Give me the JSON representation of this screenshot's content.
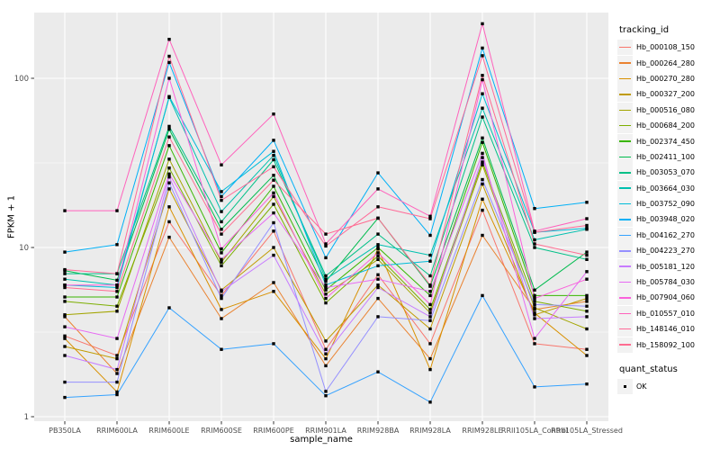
{
  "legend": {
    "tracking_title": "tracking_id",
    "quant_title": "quant_status",
    "quant_items": [
      {
        "label": "OK",
        "marker": "black-square"
      }
    ],
    "key_bg": "#F2F2F2"
  },
  "chart_data": {
    "type": "line",
    "title": "",
    "xlabel": "sample_name",
    "ylabel": "FPKM + 1",
    "x_type": "categorical",
    "y_scale": "log10",
    "y_ticks": [
      1,
      10,
      100
    ],
    "y_minor_ticks": [
      3.162,
      31.62
    ],
    "ylim": [
      1,
      230
    ],
    "grid": "on",
    "legend_position": "right",
    "panel_bg": "#EBEBEB",
    "grid_color": "#FFFFFF",
    "axis_text_color": "#4D4D4D",
    "tick_color": "#333333",
    "point_shape": "square",
    "point_color": "#000000",
    "categories": [
      "PB350LA",
      "RRIM600LA",
      "RRIM600LE",
      "RRIM600SE",
      "RRIM600PE",
      "RRIM901LA",
      "RRIM928BA",
      "RRIM928LA",
      "RRIM928LE",
      "RRII105LA_Control",
      "RRII105LA_Stressed"
    ],
    "series": [
      {
        "name": "Hb_000108_150",
        "color": "#F8766D",
        "values": [
          3.0,
          2.3,
          14.2,
          5.2,
          12.5,
          2.5,
          6.9,
          2.7,
          16.6,
          2.7,
          2.5
        ]
      },
      {
        "name": "Hb_000264_280",
        "color": "#EA8331",
        "values": [
          3.9,
          1.8,
          11.5,
          3.8,
          6.2,
          2.0,
          5.0,
          2.2,
          11.8,
          4.3,
          4.8
        ]
      },
      {
        "name": "Hb_000270_280",
        "color": "#D89000",
        "values": [
          2.9,
          1.4,
          17.4,
          4.3,
          5.5,
          2.2,
          9.8,
          1.9,
          19.3,
          4.1,
          2.3
        ]
      },
      {
        "name": "Hb_000327_200",
        "color": "#C09B00",
        "values": [
          2.6,
          2.2,
          22.2,
          5.6,
          10.0,
          2.8,
          6.0,
          3.3,
          23.7,
          4.0,
          5.0
        ]
      },
      {
        "name": "Hb_000516_080",
        "color": "#A3A500",
        "values": [
          4.0,
          4.2,
          33.3,
          8.2,
          20.0,
          5.3,
          8.5,
          4.1,
          30.8,
          4.4,
          3.3
        ]
      },
      {
        "name": "Hb_000684_200",
        "color": "#7CAE00",
        "values": [
          4.8,
          4.5,
          29.5,
          7.8,
          18.0,
          4.7,
          8.9,
          4.3,
          32.0,
          4.8,
          4.2
        ]
      },
      {
        "name": "Hb_002374_450",
        "color": "#39B600",
        "values": [
          5.1,
          5.1,
          40.0,
          9.3,
          23.0,
          5.6,
          10.0,
          5.2,
          41.8,
          5.2,
          5.2
        ]
      },
      {
        "name": "Hb_002411_100",
        "color": "#00BB4E",
        "values": [
          7.3,
          6.4,
          50.0,
          12.8,
          26.7,
          6.3,
          14.9,
          5.9,
          44.4,
          5.6,
          9.4
        ]
      },
      {
        "name": "Hb_003053_070",
        "color": "#00C087",
        "values": [
          7.0,
          7.0,
          52.0,
          14.2,
          33.0,
          6.8,
          12.0,
          6.8,
          59.0,
          10.0,
          8.5
        ]
      },
      {
        "name": "Hb_003664_030",
        "color": "#00C0AF",
        "values": [
          6.5,
          6.0,
          77.0,
          16.3,
          35.0,
          6.5,
          10.4,
          9.0,
          66.6,
          11.1,
          12.8
        ]
      },
      {
        "name": "Hb_003752_090",
        "color": "#00BCD8",
        "values": [
          6.0,
          5.8,
          78.0,
          21.4,
          37.0,
          6.0,
          7.8,
          8.3,
          81.0,
          12.3,
          13.0
        ]
      },
      {
        "name": "Hb_003948_020",
        "color": "#00B0F6",
        "values": [
          9.4,
          10.4,
          124.0,
          20.0,
          43.0,
          8.7,
          27.6,
          11.8,
          151.0,
          17.0,
          18.5
        ]
      },
      {
        "name": "Hb_004162_270",
        "color": "#35A2FF",
        "values": [
          1.3,
          1.35,
          4.4,
          2.5,
          2.7,
          1.33,
          1.84,
          1.22,
          5.2,
          1.5,
          1.56
        ]
      },
      {
        "name": "Hb_004223_270",
        "color": "#9590FF",
        "values": [
          1.6,
          1.6,
          24.1,
          5.0,
          14.0,
          1.41,
          3.9,
          3.7,
          25.2,
          4.6,
          4.5
        ]
      },
      {
        "name": "Hb_005181_120",
        "color": "#C77CFF",
        "values": [
          2.3,
          1.9,
          26.1,
          5.5,
          9.0,
          2.35,
          5.8,
          3.9,
          34.0,
          3.8,
          3.9
        ]
      },
      {
        "name": "Hb_005784_030",
        "color": "#E76BF3",
        "values": [
          3.4,
          2.9,
          27.2,
          8.5,
          16.0,
          5.8,
          6.5,
          5.5,
          36.0,
          2.9,
          7.2
        ]
      },
      {
        "name": "Hb_007904_060",
        "color": "#FA62DB",
        "values": [
          6.0,
          6.0,
          100.0,
          9.8,
          21.0,
          5.0,
          9.3,
          4.6,
          98.0,
          5.0,
          6.5
        ]
      },
      {
        "name": "Hb_010557_010",
        "color": "#FF62BC",
        "values": [
          16.5,
          16.5,
          170.0,
          30.8,
          61.5,
          10.5,
          22.2,
          15.3,
          210.0,
          12.5,
          14.8
        ]
      },
      {
        "name": "Hb_148146_010",
        "color": "#FF6A98",
        "values": [
          7.4,
          7.0,
          135.0,
          19.0,
          30.0,
          10.2,
          17.4,
          14.8,
          136.0,
          12.3,
          13.5
        ]
      },
      {
        "name": "Hb_158092_100",
        "color": "#FF6C91",
        "values": [
          5.8,
          5.5,
          45.0,
          12.0,
          25.0,
          12.0,
          14.9,
          6.0,
          104.0,
          10.5,
          9.0
        ]
      }
    ]
  }
}
